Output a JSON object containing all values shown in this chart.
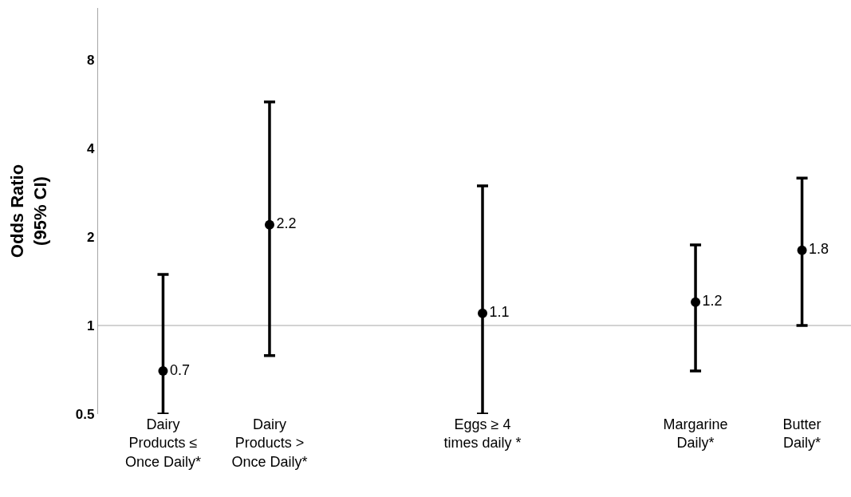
{
  "chart_data": {
    "type": "scatter",
    "ylabel": "Odds Ratio\n(95% CI)",
    "categories": [
      "Dairy\nProducts ≤\nOnce Daily*",
      "Dairy\nProducts >\nOnce Daily*",
      null,
      "Eggs ≥ 4\ntimes daily *",
      null,
      "Margarine\nDaily*",
      "Butter\nDaily*"
    ],
    "values": [
      0.7,
      2.2,
      null,
      1.1,
      null,
      1.2,
      1.8
    ],
    "errors": [
      [
        0.5,
        1.49
      ],
      [
        0.79,
        5.75
      ],
      null,
      [
        0.5,
        2.98
      ],
      null,
      [
        0.7,
        1.88
      ],
      [
        1.0,
        3.17
      ]
    ],
    "value_labels": [
      "0.7",
      "2.2",
      null,
      "1.1",
      null,
      "1.2",
      "1.8"
    ],
    "color": "#000000",
    "marker": "circle",
    "log": true,
    "grid": false,
    "ylim": [
      0.5,
      12
    ],
    "yticks": [
      0.5,
      1,
      2,
      4,
      8
    ],
    "ref_lines": [
      {
        "axis": "y",
        "value": 1,
        "color": "#a6a6a6"
      }
    ]
  }
}
